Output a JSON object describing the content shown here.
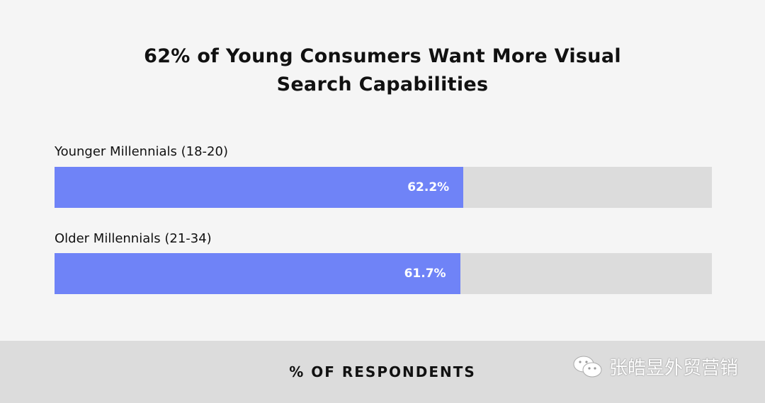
{
  "chart_data": {
    "type": "bar",
    "orientation": "horizontal",
    "title": "62% of Young Consumers Want More Visual Search Capabilities",
    "title_lines": [
      "62% of Young Consumers Want More Visual",
      "Search Capabilities"
    ],
    "categories": [
      "Younger Millennials (18-20)",
      "Older Millennials (21-34)"
    ],
    "values": [
      62.2,
      61.7
    ],
    "data_labels": [
      "62.2%",
      "61.7%"
    ],
    "xlabel": "% OF RESPONDENTS",
    "xlim": [
      0,
      100
    ],
    "grid": false,
    "colors": {
      "bar": "#6f83f7",
      "track": "#dcdcdc",
      "background": "#f5f5f5",
      "footer": "#dcdcdc"
    }
  },
  "watermark": {
    "icon": "wechat-icon",
    "text": "张皓昱外贸营销"
  }
}
